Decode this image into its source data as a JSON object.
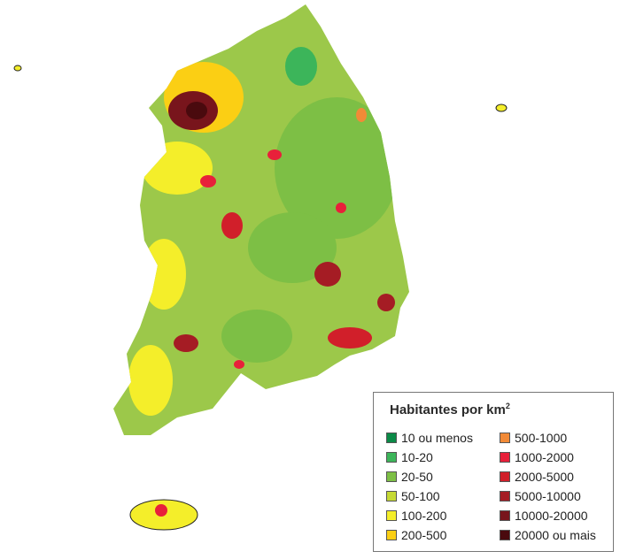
{
  "legend": {
    "title": "Habitantes por km",
    "title_sup": "2",
    "items": [
      {
        "label": "10 ou menos",
        "color": "#0b8a47"
      },
      {
        "label": "10-20",
        "color": "#3cb55a"
      },
      {
        "label": "20-50",
        "color": "#7dbf45"
      },
      {
        "label": "50-100",
        "color": "#c5d934"
      },
      {
        "label": "100-200",
        "color": "#f4ee2a"
      },
      {
        "label": "200-500",
        "color": "#fbcf14"
      },
      {
        "label": "500-1000",
        "color": "#f28a37"
      },
      {
        "label": "1000-2000",
        "color": "#e8203a"
      },
      {
        "label": "2000-5000",
        "color": "#d11f2a"
      },
      {
        "label": "5000-10000",
        "color": "#a51c24"
      },
      {
        "label": "10000-20000",
        "color": "#78151c"
      },
      {
        "label": "20000 ou mais",
        "color": "#4a0a0e"
      }
    ]
  }
}
